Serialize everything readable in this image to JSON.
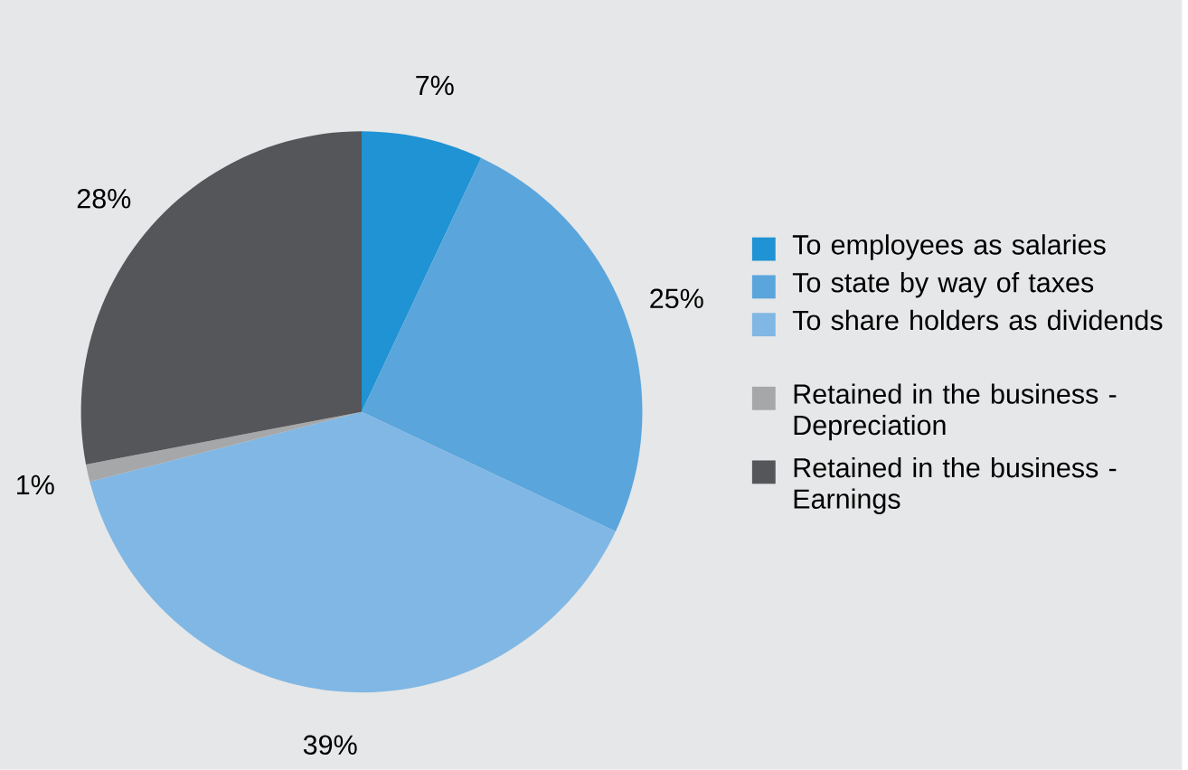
{
  "chart_data": {
    "type": "pie",
    "categories": [
      "To employees as salaries",
      "To state by way of taxes",
      "To share holders as dividends",
      "Retained in the business - Depreciation",
      "Retained in the business - Earnings"
    ],
    "values": [
      7,
      25,
      39,
      1,
      28
    ],
    "colors": [
      "#1f93d3",
      "#5aa5dc",
      "#80b7e4",
      "#a6a7a9",
      "#555659"
    ],
    "value_labels": [
      "7%",
      "25%",
      "39%",
      "1%",
      "28%"
    ],
    "legend": "right"
  }
}
